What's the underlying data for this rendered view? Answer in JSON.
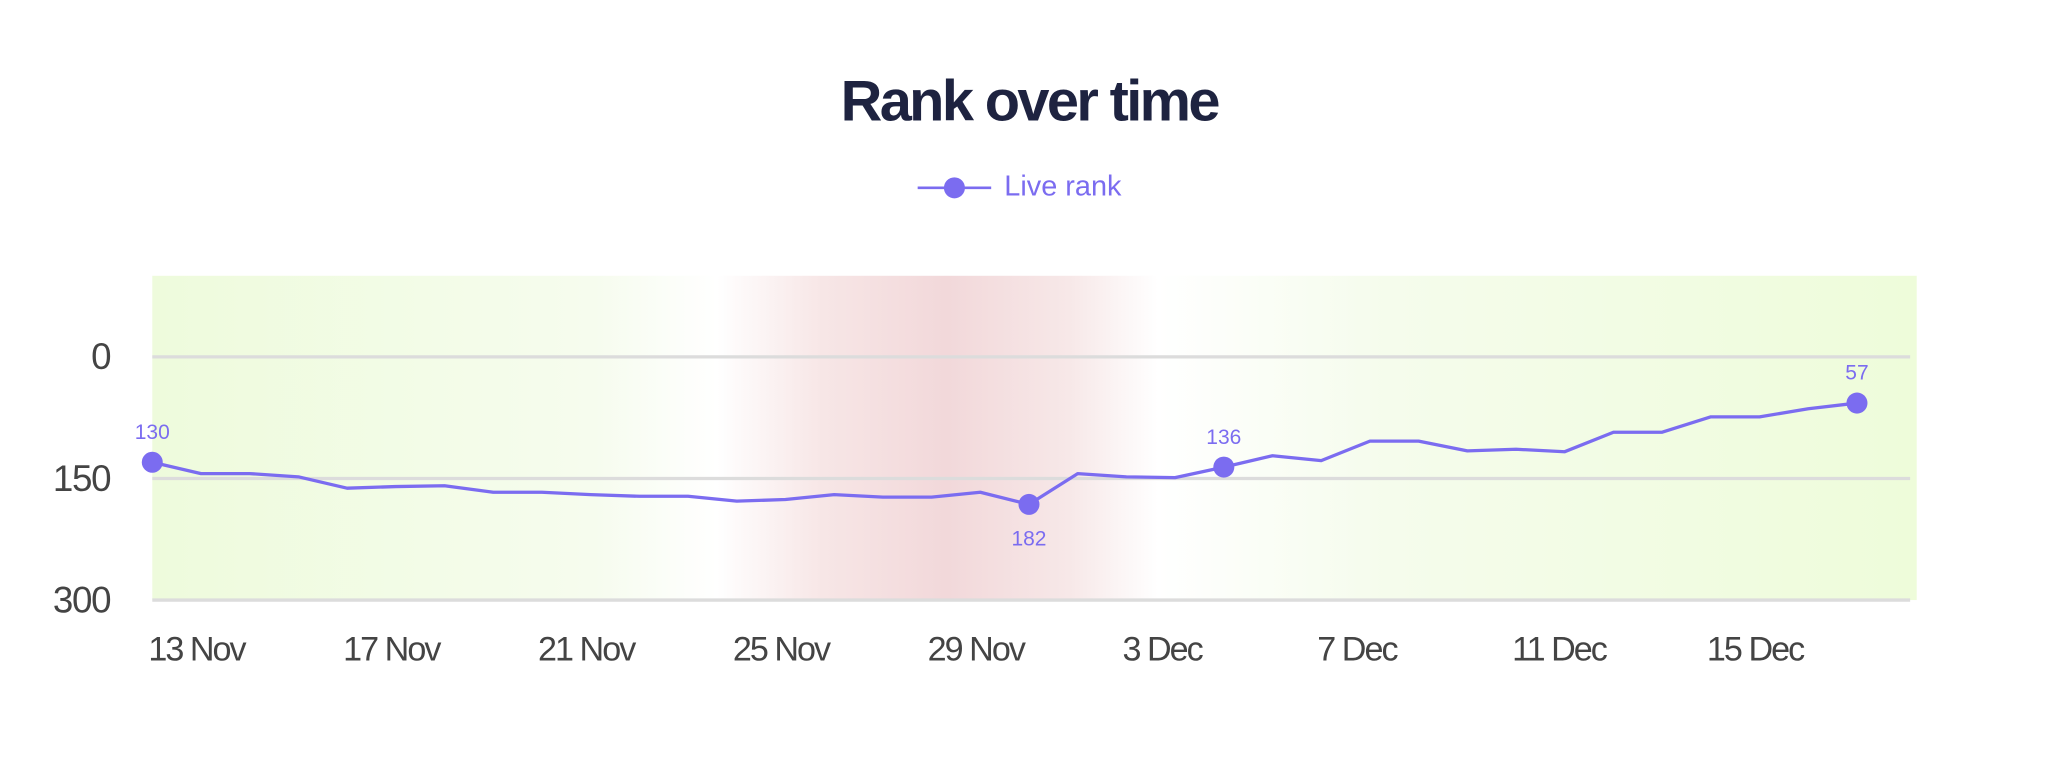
{
  "chart_data": {
    "type": "line",
    "title": "Rank over time",
    "categories": [
      "13 Nov",
      null,
      null,
      null,
      "17 Nov",
      null,
      null,
      null,
      "21 Nov",
      null,
      null,
      null,
      "25 Nov",
      null,
      null,
      null,
      "29 Nov",
      null,
      null,
      null,
      "3 Dec",
      null,
      null,
      null,
      "7 Dec",
      null,
      null,
      null,
      "11 Dec",
      null,
      null,
      null,
      "15 Dec",
      null,
      null,
      null
    ],
    "series": [
      {
        "name": "Live rank",
        "color": "#7b6cf0",
        "values": [
          130,
          144,
          144,
          148,
          162,
          160,
          159,
          167,
          167,
          170,
          172,
          172,
          178,
          176,
          170,
          173,
          173,
          167,
          182,
          144,
          148,
          149,
          136,
          122,
          128,
          104,
          104,
          116,
          114,
          117,
          93,
          93,
          74,
          74,
          64,
          57
        ],
        "highlighted_points": [
          0,
          18,
          22,
          35
        ]
      }
    ],
    "ylim": [
      300,
      -100
    ],
    "yticks": [
      0,
      150,
      300
    ],
    "grid": true
  }
}
